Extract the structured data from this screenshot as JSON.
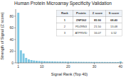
{
  "chart_data": {
    "type": "bar",
    "title": "Human Protein Microarray Specificity Validation",
    "xlabel": "Signal Rank (Top 40)",
    "ylabel": "Strength of Signal (Z score)",
    "x": [
      1,
      2,
      3,
      4,
      5,
      6,
      7,
      8,
      9,
      10,
      11,
      12,
      13,
      14,
      15,
      16,
      17,
      18,
      19,
      20,
      21,
      22,
      23,
      24,
      25,
      26,
      27,
      28,
      29,
      30,
      31,
      32,
      33,
      34,
      35,
      36,
      37,
      38,
      39,
      40
    ],
    "values": [
      85.9,
      21.5,
      16.07,
      8.5,
      6.0,
      4.8,
      4.0,
      3.5,
      3.2,
      3.0,
      2.8,
      2.6,
      2.5,
      2.4,
      2.3,
      2.2,
      2.15,
      2.1,
      2.05,
      2.0,
      1.95,
      1.9,
      1.85,
      1.8,
      1.75,
      1.72,
      1.68,
      1.65,
      1.62,
      1.58,
      1.55,
      1.52,
      1.5,
      1.47,
      1.44,
      1.42,
      1.4,
      1.38,
      1.35,
      2.5
    ],
    "color": "#7ec8e3",
    "xlim": [
      0,
      41
    ],
    "ylim": [
      0,
      92
    ],
    "xticks": [
      1,
      10,
      20,
      30,
      40
    ],
    "yticks": [
      0,
      20,
      40,
      60,
      80
    ],
    "table": {
      "columns": [
        "Rank",
        "Protein",
        "Z score",
        "S score"
      ],
      "rows": [
        [
          "1",
          "ZNF562",
          "85.90",
          "68.40"
        ],
        [
          "2",
          "PDZRN3",
          "21.50",
          "13.48"
        ],
        [
          "3",
          "ATPRVID",
          "16.07",
          "0.52"
        ]
      ]
    }
  }
}
